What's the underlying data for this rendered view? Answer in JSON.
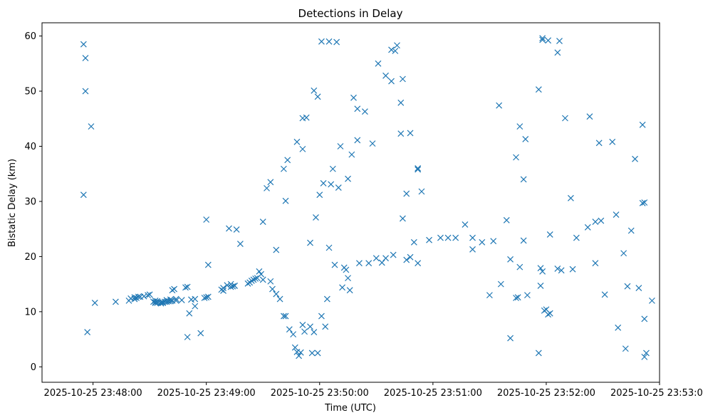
{
  "chart_data": {
    "type": "scatter",
    "title": "Detections in Delay",
    "xlabel": "Time (UTC)",
    "ylabel": "Bistatic Delay (km)",
    "x_unit": "seconds after 2025-10-25 23:48:00",
    "xlim": [
      -27,
      300
    ],
    "ylim": [
      -2.8,
      62.4
    ],
    "x_ticks": [
      {
        "value": 0,
        "label": "2025-10-25 23:48:00"
      },
      {
        "value": 60,
        "label": "2025-10-25 23:49:00"
      },
      {
        "value": 120,
        "label": "2025-10-25 23:50:00"
      },
      {
        "value": 180,
        "label": "2025-10-25 23:51:00"
      },
      {
        "value": 240,
        "label": "2025-10-25 23:52:00"
      },
      {
        "value": 300,
        "label": "2025-10-25 23:53:00"
      }
    ],
    "y_ticks": [
      {
        "value": 0,
        "label": "0"
      },
      {
        "value": 10,
        "label": "10"
      },
      {
        "value": 20,
        "label": "20"
      },
      {
        "value": 30,
        "label": "30"
      },
      {
        "value": 40,
        "label": "40"
      },
      {
        "value": 50,
        "label": "50"
      },
      {
        "value": 60,
        "label": "60"
      }
    ],
    "grid": false,
    "marker": "x",
    "color": "#1f77b4",
    "series": [
      {
        "name": "detections",
        "x": [
          -5,
          -5,
          -4,
          -4,
          -1,
          -3,
          1,
          12,
          19,
          22,
          25,
          27,
          29,
          30,
          20,
          23,
          22,
          24,
          42,
          50,
          43,
          49,
          34,
          33,
          41,
          32,
          33,
          33,
          36,
          37,
          34,
          36,
          37,
          38,
          39,
          40,
          41,
          42,
          44,
          47,
          52,
          54,
          59,
          60,
          61,
          69,
          68,
          74,
          75,
          71,
          73,
          69,
          73,
          75,
          51,
          54,
          57,
          39,
          44,
          50,
          60,
          61,
          82,
          83,
          84,
          85,
          86,
          87,
          88,
          89,
          90,
          94,
          95,
          97,
          99,
          101,
          102,
          104,
          106,
          107,
          108,
          109,
          110,
          111,
          112,
          115,
          116,
          117,
          119,
          121,
          123,
          124,
          72,
          76,
          78,
          90,
          92,
          94,
          102,
          115,
          118,
          125,
          132,
          134,
          136,
          97,
          101,
          103,
          111,
          120,
          122,
          126,
          127,
          128,
          130,
          135,
          137,
          140,
          131,
          140,
          138,
          144,
          151,
          155,
          158,
          160,
          161,
          158,
          163,
          164,
          168,
          148,
          108,
          111,
          113,
          117,
          119,
          121,
          125,
          129,
          133,
          135,
          141,
          146,
          150,
          155,
          168,
          172,
          153,
          159,
          166,
          170,
          178,
          184,
          188,
          192,
          201,
          164,
          166,
          172,
          172,
          163,
          174,
          197,
          201,
          206,
          212,
          216,
          224,
          230,
          210,
          221,
          215,
          238,
          236,
          246,
          238,
          241,
          247,
          250,
          263,
          226,
          228,
          253,
          268,
          275,
          291,
          291,
          287,
          292,
          219,
          224,
          229,
          228,
          242,
          256,
          262,
          266,
          269,
          277,
          281,
          285,
          289,
          296,
          238,
          239,
          240,
          241,
          242,
          237,
          236,
          221,
          225,
          254,
          266,
          237,
          226,
          246,
          248,
          271,
          292,
          282,
          292,
          278,
          283,
          293
        ],
        "y": [
          58.5,
          31.2,
          50,
          56,
          43.6,
          6.3,
          11.6,
          11.8,
          12,
          12.3,
          12.7,
          12.8,
          13,
          13.1,
          12.4,
          12.5,
          12.6,
          12.7,
          13.9,
          14.5,
          14.1,
          14.4,
          11.9,
          12,
          12.2,
          11.8,
          11.6,
          11.7,
          11.5,
          11.6,
          11.6,
          11.7,
          11.7,
          11.8,
          11.8,
          11.9,
          11.9,
          12,
          12,
          12.1,
          12.2,
          12.3,
          12.5,
          12.6,
          12.7,
          13.8,
          14,
          14.6,
          14.7,
          14.8,
          15,
          14.3,
          14.5,
          14.7,
          9.7,
          11,
          6.1,
          12.1,
          12.3,
          5.4,
          26.7,
          18.5,
          15.1,
          15.3,
          15.6,
          15.8,
          16,
          16.1,
          17.3,
          16.8,
          15.8,
          15.5,
          14.1,
          13.2,
          12.3,
          9.2,
          9.2,
          6.8,
          5.9,
          3.5,
          2.7,
          2,
          2.6,
          7.6,
          6.4,
          7.3,
          2.5,
          6.3,
          2.5,
          9.2,
          7.3,
          12.3,
          25.1,
          24.9,
          22.3,
          26.3,
          32.4,
          33.5,
          30.1,
          22.5,
          27.1,
          21.6,
          14.4,
          17.6,
          13.9,
          21.2,
          35.9,
          37.5,
          39.5,
          31.2,
          33.3,
          33.1,
          35.9,
          18.5,
          32.5,
          34.1,
          38.5,
          41.1,
          40,
          46.8,
          48.8,
          46.3,
          55,
          52.8,
          57.5,
          57.3,
          58.3,
          51.8,
          47.9,
          52.2,
          42.4,
          40.5,
          40.8,
          45.1,
          45.2,
          50.1,
          49,
          59,
          59,
          58.9,
          18,
          16.1,
          18.8,
          18.8,
          19.7,
          19.7,
          19.9,
          18.8,
          18.9,
          20.3,
          19.4,
          22.6,
          23,
          23.4,
          23.4,
          23.4,
          23.4,
          26.9,
          31.4,
          36,
          35.8,
          42.3,
          31.8,
          25.8,
          21.3,
          22.6,
          22.8,
          15,
          12.5,
          13,
          13,
          19.5,
          47.4,
          59.6,
          50.3,
          57,
          59.3,
          59.2,
          59.1,
          45.1,
          45.4,
          43.6,
          34,
          30.6,
          40.6,
          40.8,
          43.9,
          29.7,
          37.7,
          29.8,
          26.6,
          38,
          41.3,
          22.9,
          24,
          23.4,
          25.3,
          26.3,
          26.5,
          27.6,
          20.6,
          24.7,
          14.3,
          12,
          17.3,
          10.2,
          10.4,
          9.5,
          9.7,
          14.7,
          2.5,
          5.2,
          12.6,
          17.7,
          18.8,
          17.9,
          18.1,
          17.8,
          17.5,
          13.1,
          8.7,
          3.3,
          1.8,
          7.1,
          14.6,
          2.5
        ]
      }
    ]
  }
}
